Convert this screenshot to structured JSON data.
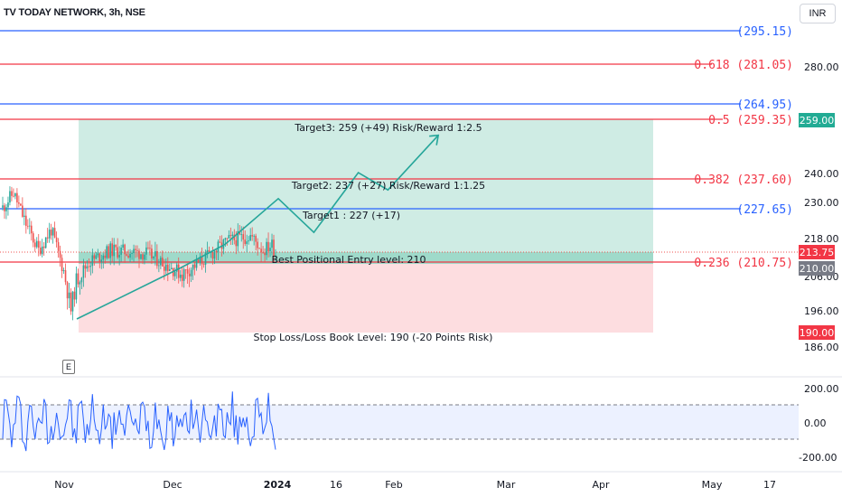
{
  "header": {
    "title": "TV TODAY NETWORK, 3h, NSE",
    "currency": "INR",
    "event_marker": "E"
  },
  "colors": {
    "up": "#26a69a",
    "down": "#ef5350",
    "green": "#26a69a",
    "blue": "#2962ff",
    "red": "#f23645",
    "target_zone": "#cfece4",
    "stop_zone": "#fddde0"
  },
  "chart_data": {
    "type": "candlestick",
    "symbol": "TV TODAY NETWORK",
    "interval": "3h",
    "exchange": "NSE",
    "price_ylim": [
      180,
      312
    ],
    "price_axis_ticks": [
      "280.00",
      "240.00",
      "230.00",
      "218.00",
      "206.00",
      "196.00",
      "186.00"
    ],
    "time_axis_ticks": [
      "Nov",
      "Dec",
      "2024",
      "16",
      "Feb",
      "Mar",
      "Apr",
      "May",
      "17"
    ],
    "current_price": "213.75",
    "entry_price": "210.00",
    "target_price": "259.00",
    "stop_price": "190.00",
    "levels": [
      {
        "label": "(295.15)",
        "value": 295.15,
        "color": "blue"
      },
      {
        "label": "0.618 (281.05)",
        "value": 281.05,
        "color": "red"
      },
      {
        "label": "(264.95)",
        "value": 264.95,
        "color": "blue"
      },
      {
        "label": "0.5 (259.35)",
        "value": 259.35,
        "color": "red"
      },
      {
        "label": "0.382 (237.60)",
        "value": 237.6,
        "color": "red"
      },
      {
        "label": "(227.65)",
        "value": 227.65,
        "color": "blue"
      },
      {
        "label": "0.236 (210.75)",
        "value": 210.75,
        "color": "red"
      }
    ],
    "annotations": [
      "Target3: 259 (+49) Risk/Reward 1:2.5",
      "Target2: 237 (+27) Risk/Reward 1:1.25",
      "Target1 : 227 (+17)",
      "Best Positional Entry level: 210",
      "Stop Loss/Loss Book Level: 190 (-20 Points Risk)"
    ],
    "projected_path": [
      [
        0,
        192
      ],
      [
        3.5,
        208
      ],
      [
        5.0,
        216
      ],
      [
        6.8,
        231
      ],
      [
        8.0,
        220
      ],
      [
        9.5,
        240
      ],
      [
        10.5,
        234
      ],
      [
        12.2,
        254
      ]
    ],
    "oscillator": {
      "axis_ticks": [
        "200.00",
        "0.00",
        "-200.00"
      ],
      "upper_band": 100,
      "lower_band": -100,
      "ylim": [
        -220,
        240
      ]
    }
  }
}
